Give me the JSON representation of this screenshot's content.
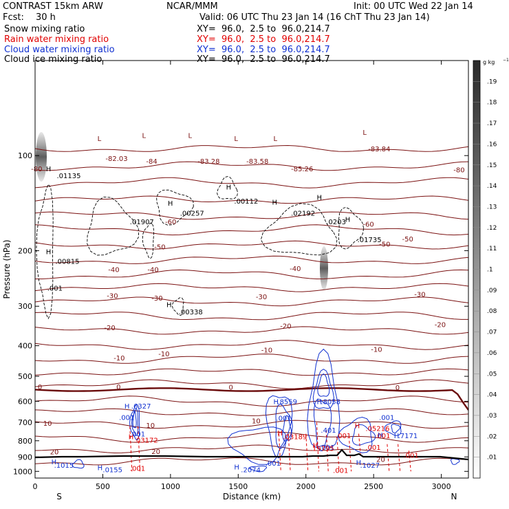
{
  "header": {
    "model": "CONTRAST 15km ARW",
    "org": "NCAR/MMM",
    "init": "Init: 00 UTC Wed 22 Jan 14",
    "fcst_label": "Fcst:",
    "fcst_value": "30 h",
    "valid": "Valid: 06 UTC Thu 23 Jan 14 (16 ChT Thu 23 Jan 14)",
    "fields": [
      {
        "name": "Snow mixing ratio",
        "xy": "XY=  96.0,  2.5 to  96.0,214.7",
        "color": "#000000"
      },
      {
        "name": "Rain water mixing ratio",
        "xy": "XY=  96.0,  2.5 to  96.0,214.7",
        "color": "#e00000"
      },
      {
        "name": "Cloud water mixing ratio",
        "xy": "XY=  96.0,  2.5 to  96.0,214.7",
        "color": "#1030d0"
      },
      {
        "name": "Cloud ice mixing ratio",
        "xy": "XY=  96.0,  2.5 to  96.0,214.7",
        "color": "#000000"
      }
    ]
  },
  "chart_data": {
    "type": "cross-section contour",
    "xlabel": "Distance (km)",
    "ylabel": "Pressure (hPa)",
    "xlim": [
      0,
      3200
    ],
    "ylim": [
      1050,
      50
    ],
    "y_scale": "log",
    "x_ticks": [
      "0",
      "500",
      "1000",
      "1500",
      "2000",
      "2500",
      "3000"
    ],
    "y_ticks": [
      "100",
      "200",
      "300",
      "400",
      "500",
      "600",
      "700",
      "800",
      "900",
      "1000"
    ],
    "end_labels": {
      "left": "S",
      "right": "N"
    },
    "colorbar": {
      "unit": "g kg",
      "ticks": [
        ".01",
        ".02",
        ".03",
        ".04",
        ".05",
        ".06",
        ".07",
        ".08",
        ".09",
        ".1",
        ".11",
        ".12",
        ".13",
        ".14",
        ".15",
        ".16",
        ".17",
        ".18",
        ".19"
      ],
      "fill_from": "#ffffff",
      "fill_to": "#2a2a2a"
    },
    "temperature_labels": [
      {
        "text": "-80",
        "x": -30,
        "p": 112
      },
      {
        "text": "-82.03",
        "x": 520,
        "p": 104
      },
      {
        "text": "-84",
        "x": 820,
        "p": 106
      },
      {
        "text": "-83.28",
        "x": 1200,
        "p": 106
      },
      {
        "text": "-83.58",
        "x": 1560,
        "p": 106
      },
      {
        "text": "-85.26",
        "x": 1890,
        "p": 112
      },
      {
        "text": "-83.84",
        "x": 2460,
        "p": 97
      },
      {
        "text": "-80",
        "x": 3090,
        "p": 113
      },
      {
        "text": "-60",
        "x": 960,
        "p": 165
      },
      {
        "text": "-60",
        "x": 2420,
        "p": 168
      },
      {
        "text": "-50",
        "x": 880,
        "p": 198
      },
      {
        "text": "-50",
        "x": 2540,
        "p": 194
      },
      {
        "text": "-50",
        "x": 2710,
        "p": 187
      },
      {
        "text": "-40",
        "x": 540,
        "p": 234
      },
      {
        "text": "-40",
        "x": 830,
        "p": 234
      },
      {
        "text": "-40",
        "x": 1880,
        "p": 232
      },
      {
        "text": "-30",
        "x": 530,
        "p": 283
      },
      {
        "text": "-30",
        "x": 860,
        "p": 288
      },
      {
        "text": "-30",
        "x": 1630,
        "p": 285
      },
      {
        "text": "-30",
        "x": 2800,
        "p": 280
      },
      {
        "text": "-20",
        "x": 510,
        "p": 357
      },
      {
        "text": "-20",
        "x": 1810,
        "p": 353
      },
      {
        "text": "-20",
        "x": 2950,
        "p": 349
      },
      {
        "text": "-10",
        "x": 580,
        "p": 445
      },
      {
        "text": "-10",
        "x": 910,
        "p": 432
      },
      {
        "text": "-10",
        "x": 1670,
        "p": 420
      },
      {
        "text": "-10",
        "x": 2480,
        "p": 418
      },
      {
        "text": "0",
        "x": 20,
        "p": 550
      },
      {
        "text": "0",
        "x": 600,
        "p": 550
      },
      {
        "text": "0",
        "x": 1430,
        "p": 551
      },
      {
        "text": "0",
        "x": 2660,
        "p": 552
      },
      {
        "text": "10",
        "x": 60,
        "p": 718
      },
      {
        "text": "10",
        "x": 820,
        "p": 728
      },
      {
        "text": "10",
        "x": 1600,
        "p": 705
      },
      {
        "text": "20",
        "x": 110,
        "p": 883
      },
      {
        "text": "20",
        "x": 860,
        "p": 880
      },
      {
        "text": "20",
        "x": 2520,
        "p": 933
      }
    ],
    "cloud_ice_labels": [
      {
        "text": ".01135",
        "x": 160,
        "p": 118
      },
      {
        "text": ".01907",
        "x": 700,
        "p": 165
      },
      {
        "text": ".00257",
        "x": 1070,
        "p": 155
      },
      {
        "text": ".00112",
        "x": 1470,
        "p": 142
      },
      {
        "text": ".02192",
        "x": 1890,
        "p": 155
      },
      {
        "text": ".0203",
        "x": 2150,
        "p": 165
      },
      {
        "text": ".01735",
        "x": 2380,
        "p": 188
      },
      {
        "text": ".00815",
        "x": 150,
        "p": 220
      },
      {
        "text": ".001",
        "x": 90,
        "p": 268
      },
      {
        "text": ".00338",
        "x": 1060,
        "p": 318
      }
    ],
    "cloud_water_labels": [
      {
        "text": ".6327",
        "x": 710,
        "p": 632
      },
      {
        "text": ".001",
        "x": 620,
        "p": 688
      },
      {
        "text": ".001",
        "x": 700,
        "p": 775
      },
      {
        "text": ".8559",
        "x": 1790,
        "p": 613
      },
      {
        "text": ".8058",
        "x": 2110,
        "p": 613
      },
      {
        "text": ".001",
        "x": 1780,
        "p": 690
      },
      {
        "text": ".401",
        "x": 2110,
        "p": 755
      },
      {
        "text": ".001",
        "x": 2540,
        "p": 688
      },
      {
        "text": ".7171",
        "x": 2680,
        "p": 785
      },
      {
        "text": ".001",
        "x": 2100,
        "p": 855
      },
      {
        "text": ".001",
        "x": 1700,
        "p": 960
      },
      {
        "text": ".1015",
        "x": 140,
        "p": 975
      },
      {
        "text": ".0155",
        "x": 500,
        "p": 1005
      },
      {
        "text": ".2074",
        "x": 1520,
        "p": 1005
      },
      {
        "text": ".1027",
        "x": 2400,
        "p": 975
      }
    ],
    "rain_labels": [
      {
        "text": ".03172",
        "x": 730,
        "p": 810
      },
      {
        "text": ".03189",
        "x": 1830,
        "p": 790
      },
      {
        "text": ".19795",
        "x": 2030,
        "p": 862
      },
      {
        "text": ".001",
        "x": 2220,
        "p": 785
      },
      {
        "text": ".05216",
        "x": 2440,
        "p": 745
      },
      {
        "text": ".001",
        "x": 2510,
        "p": 785
      },
      {
        "text": ".001",
        "x": 2440,
        "p": 855
      },
      {
        "text": ".001",
        "x": 2720,
        "p": 905
      },
      {
        "text": ".001",
        "x": 2200,
        "p": 1010
      },
      {
        "text": ".001",
        "x": 700,
        "p": 995
      }
    ],
    "highs": [
      {
        "x": 80,
        "p": 112,
        "color": "#000000"
      },
      {
        "x": 980,
        "p": 144,
        "color": "#000000"
      },
      {
        "x": 1410,
        "p": 128,
        "color": "#000000"
      },
      {
        "x": 1750,
        "p": 143,
        "color": "#000000"
      },
      {
        "x": 2080,
        "p": 138,
        "color": "#000000"
      },
      {
        "x": 2290,
        "p": 162,
        "color": "#000000"
      },
      {
        "x": 80,
        "p": 205,
        "color": "#000000"
      },
      {
        "x": 970,
        "p": 302,
        "color": "#000000"
      },
      {
        "x": 660,
        "p": 632,
        "color": "#1030d0"
      },
      {
        "x": 1760,
        "p": 613,
        "color": "#1030d0"
      },
      {
        "x": 2080,
        "p": 613,
        "color": "#1030d0"
      },
      {
        "x": 2650,
        "p": 785,
        "color": "#1030d0"
      },
      {
        "x": 2530,
        "p": 782,
        "color": "#1030d0"
      },
      {
        "x": 120,
        "p": 950,
        "color": "#1030d0"
      },
      {
        "x": 460,
        "p": 990,
        "color": "#1030d0"
      },
      {
        "x": 1470,
        "p": 985,
        "color": "#1030d0"
      },
      {
        "x": 2370,
        "p": 955,
        "color": "#1030d0"
      },
      {
        "x": 690,
        "p": 790,
        "color": "#e00000"
      },
      {
        "x": 1790,
        "p": 770,
        "color": "#e00000"
      },
      {
        "x": 2050,
        "p": 843,
        "color": "#e00000"
      },
      {
        "x": 2360,
        "p": 730,
        "color": "#e00000"
      }
    ],
    "lows": [
      {
        "x": 460,
        "p": 90
      },
      {
        "x": 790,
        "p": 88
      },
      {
        "x": 1130,
        "p": 88
      },
      {
        "x": 1470,
        "p": 90
      },
      {
        "x": 1760,
        "p": 90
      },
      {
        "x": 2420,
        "p": 86
      }
    ]
  }
}
